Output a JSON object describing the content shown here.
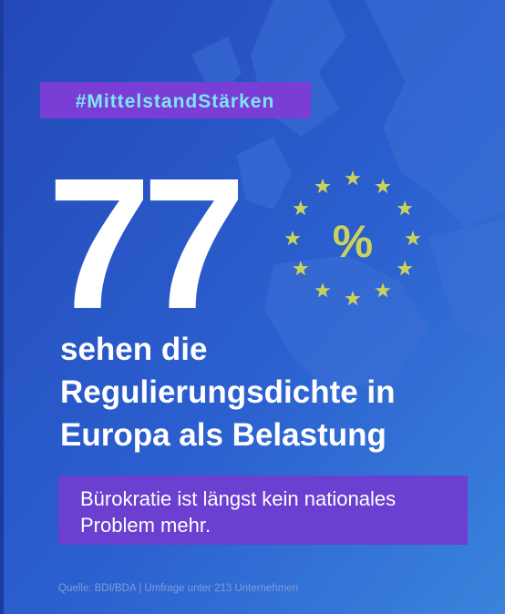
{
  "hashtag": "#MittelstandStärken",
  "stat": {
    "number": "77",
    "unit": "%"
  },
  "headline": [
    "sehen die",
    "Regulierungsdichte in",
    "Europa als Belastung"
  ],
  "subline": [
    "Bürokratie ist längst kein nationales",
    "Problem mehr."
  ],
  "source": "Quelle: BDI/BDA | Umfrage unter 213 Unternehmen"
}
